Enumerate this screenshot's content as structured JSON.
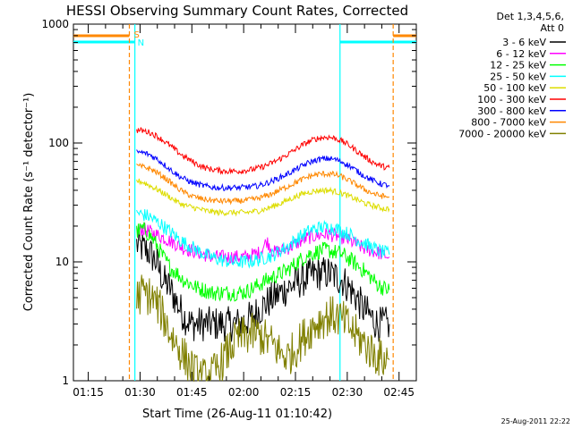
{
  "chart_data": {
    "type": "line",
    "title": "HESSI Observing Summary Count Rates, Corrected",
    "xlabel": "Start Time (26-Aug-11 01:10:42)",
    "ylabel": "Corrected Count Rate (s⁻¹ detector⁻¹)",
    "yscale": "log",
    "ylim": [
      1,
      1000
    ],
    "xlim_minutes_after_01_10_42": [
      0,
      99.3
    ],
    "x_tick_labels": [
      "01:15",
      "01:30",
      "01:45",
      "02:00",
      "02:15",
      "02:30",
      "02:45"
    ],
    "x_tick_minutes": [
      4.3,
      19.3,
      34.3,
      49.3,
      64.3,
      79.3,
      94.3
    ],
    "y_tick_labels": [
      "1",
      "10",
      "100",
      "1000"
    ],
    "y_tick_values": [
      1,
      10,
      100,
      1000
    ],
    "legend_header": [
      "Det 1,3,4,5,6,",
      "Att 0"
    ],
    "legend_position": "right",
    "x_minutes": [
      18.3,
      20,
      22,
      24,
      26,
      28,
      30,
      32,
      34,
      36,
      38,
      40,
      42,
      44,
      46,
      48,
      50,
      52,
      54,
      56,
      58,
      60,
      62,
      64,
      66,
      68,
      70,
      72,
      74,
      76,
      78,
      80,
      82,
      84,
      86,
      88,
      90,
      91.5
    ],
    "series": [
      {
        "name": "3 - 6 keV",
        "color": "#000000",
        "values": [
          14,
          13,
          12,
          10,
          7,
          6,
          4.5,
          3.5,
          3,
          3,
          3,
          3,
          3,
          3,
          3,
          3,
          3.2,
          3.5,
          4,
          4.5,
          5,
          5.5,
          6,
          6.5,
          7,
          7.5,
          8,
          8,
          8,
          7.5,
          7,
          6,
          5,
          4,
          3.5,
          3,
          3,
          3
        ]
      },
      {
        "name": "6 - 12 keV",
        "color": "#ff00ff",
        "values": [
          18,
          19,
          18,
          17,
          16,
          15,
          14,
          13,
          12.5,
          12,
          11.5,
          11,
          11,
          11,
          11,
          11,
          11,
          11.5,
          12,
          15,
          12,
          12.5,
          13,
          14,
          15,
          16,
          16.5,
          17,
          17,
          16.5,
          16,
          15,
          14,
          13,
          12.5,
          12,
          11.5,
          11
        ]
      },
      {
        "name": "12 - 25 keV",
        "color": "#00ff00",
        "values": [
          18,
          19,
          17,
          14,
          11,
          9,
          8,
          7,
          6.5,
          6,
          5.8,
          5.5,
          5.5,
          5.5,
          5.5,
          5.5,
          5.6,
          6,
          6.5,
          7,
          7.5,
          8,
          8.5,
          9.5,
          10.5,
          11.5,
          12,
          12.5,
          12.5,
          12,
          11.5,
          10.5,
          9.5,
          8.5,
          7.5,
          6.5,
          6,
          5.8
        ]
      },
      {
        "name": "25 - 50 keV",
        "color": "#00ffff",
        "values": [
          26,
          25,
          24,
          22,
          20,
          18,
          16,
          14.5,
          13.5,
          12.5,
          11.5,
          11,
          10.5,
          10.2,
          10,
          10,
          10,
          10.2,
          10.5,
          11,
          11.5,
          12.5,
          13.5,
          15,
          16.5,
          18,
          19,
          19.5,
          19.5,
          19,
          18,
          17,
          15.5,
          14.5,
          13.5,
          12.5,
          12,
          11.5
        ]
      },
      {
        "name": "50 - 100 keV",
        "color": "#dddd00",
        "values": [
          48,
          47,
          44,
          41,
          38,
          35,
          32,
          30,
          29,
          28,
          27,
          26.5,
          26,
          26,
          26,
          26,
          26,
          26.5,
          27,
          28,
          29.5,
          31,
          33,
          35,
          37,
          38.5,
          39.5,
          40,
          40,
          39,
          37.5,
          35.5,
          33.5,
          31.5,
          30,
          29,
          28,
          28
        ]
      },
      {
        "name": "100 - 300 keV",
        "color": "#ff0000",
        "values": [
          128,
          127,
          123,
          115,
          105,
          95,
          85,
          77,
          71,
          66,
          62,
          60,
          59,
          58,
          58,
          58,
          59,
          60,
          62,
          65,
          69,
          74,
          80,
          87,
          95,
          102,
          108,
          111,
          112,
          109,
          103,
          95,
          86,
          78,
          71,
          66,
          63,
          62
        ]
      },
      {
        "name": "300 - 800 keV",
        "color": "#0000ff",
        "values": [
          84,
          83,
          80,
          74,
          67,
          60,
          54,
          50,
          47,
          45,
          43.5,
          42.5,
          42,
          42,
          42,
          42,
          42.5,
          43,
          44,
          46,
          48.5,
          51.5,
          55,
          59,
          63.5,
          68,
          71.5,
          73.5,
          74,
          72.5,
          69,
          64,
          58.5,
          53.5,
          49.5,
          46.5,
          44.5,
          44
        ]
      },
      {
        "name": "800 - 7000 keV",
        "color": "#ff8800",
        "values": [
          64,
          63,
          61,
          57,
          52,
          47,
          42,
          38.5,
          36,
          34.5,
          33.5,
          33,
          32.5,
          32.5,
          32.5,
          32.5,
          33,
          33.5,
          34.5,
          36,
          38,
          40.5,
          43,
          46,
          49,
          52,
          54,
          55,
          55,
          54,
          51.5,
          48,
          44.5,
          41,
          38.5,
          36.5,
          35.5,
          35
        ]
      },
      {
        "name": "7000 - 20000 keV",
        "color": "#808000",
        "values": [
          5,
          5.5,
          5.2,
          4.5,
          3.5,
          2.5,
          2,
          1.6,
          1.3,
          1.1,
          1.05,
          1.1,
          1.3,
          1.6,
          2,
          2.3,
          2.4,
          2.5,
          2.4,
          2.2,
          2,
          1.7,
          1.6,
          1.8,
          2.2,
          2.6,
          3,
          3.3,
          3.5,
          3.5,
          3.2,
          2.8,
          2.4,
          2.1,
          1.8,
          1.6,
          1.5,
          1.5
        ]
      }
    ],
    "annotations": {
      "saa_label": "S",
      "night_label": "N",
      "saa_color": "#ff8800",
      "night_color": "#00ffff",
      "saa_minutes": [
        [
          0,
          16.2
        ],
        [
          92.6,
          99.3
        ]
      ],
      "night_minutes": [
        [
          0,
          17.8
        ],
        [
          77.2,
          99.3
        ]
      ]
    },
    "background": "#ffffff",
    "grid": false
  },
  "footer_timestamp": "25-Aug-2011 22:22"
}
